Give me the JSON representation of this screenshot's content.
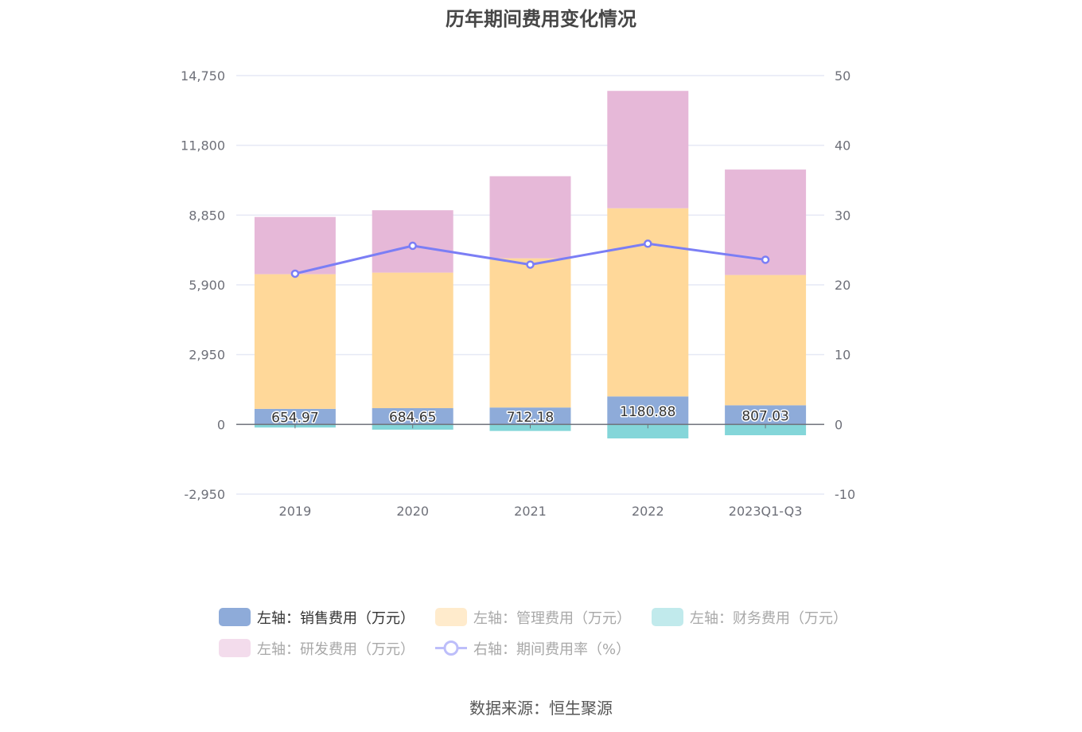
{
  "title": "历年期间费用变化情况",
  "source": "数据来源：恒生聚源",
  "colors": {
    "sales": "#8eabd9",
    "management": "#ffd899",
    "finance": "#84d6d9",
    "rd": "#e6b8d8",
    "rate": "#7b7ef5",
    "grid": "#e6e9f5",
    "axis": "#6e7079"
  },
  "legend": {
    "items": [
      {
        "label": "左轴：销售费用（万元）",
        "key": "sales",
        "type": "bar",
        "active": true,
        "swatch": "#8eabd9"
      },
      {
        "label": "左轴：管理费用（万元）",
        "key": "management",
        "type": "bar",
        "active": false,
        "swatch": "#ffebcc"
      },
      {
        "label": "左轴：财务费用（万元）",
        "key": "finance",
        "type": "bar",
        "active": false,
        "swatch": "#c1eaec"
      },
      {
        "label": "左轴：研发费用（万元）",
        "key": "rd",
        "type": "bar",
        "active": false,
        "swatch": "#f3dcec"
      },
      {
        "label": "右轴：期间费用率（%）",
        "key": "rate",
        "type": "line",
        "active": false,
        "swatch": "#bdbefa"
      }
    ]
  },
  "chart_data": {
    "type": "bar",
    "title": "历年期间费用变化情况",
    "categories": [
      "2019",
      "2020",
      "2021",
      "2022",
      "2023Q1-Q3"
    ],
    "stacked": true,
    "series": [
      {
        "name": "左轴：销售费用（万元）",
        "axis": "left",
        "type": "bar",
        "values": [
          654.97,
          684.65,
          712.18,
          1180.88,
          807.03
        ],
        "labels_shown": true
      },
      {
        "name": "左轴：管理费用（万元）",
        "axis": "left",
        "type": "bar",
        "values": [
          5696,
          5733,
          6311,
          7959,
          5510
        ]
      },
      {
        "name": "左轴：财务费用（万元）",
        "axis": "left",
        "type": "bar",
        "values": [
          -134,
          -225,
          -280,
          -595,
          -460
        ]
      },
      {
        "name": "左轴：研发费用（万元）",
        "axis": "left",
        "type": "bar",
        "values": [
          2419,
          2638,
          3471,
          4963,
          4459
        ]
      },
      {
        "name": "右轴：期间费用率（%）",
        "axis": "right",
        "type": "line",
        "values": [
          21.6,
          25.6,
          22.9,
          25.9,
          23.6
        ]
      }
    ],
    "left_axis": {
      "min": -2950,
      "max": 14750,
      "ticks": [
        -2950,
        0,
        2950,
        5900,
        8850,
        11800,
        14750
      ],
      "tick_labels": [
        "-2,950",
        "0",
        "2,950",
        "5,900",
        "8,850",
        "11,800",
        "14,750"
      ]
    },
    "right_axis": {
      "min": -10,
      "max": 50,
      "ticks": [
        -10,
        0,
        10,
        20,
        30,
        40,
        50
      ],
      "tick_labels": [
        "-10",
        "0",
        "10",
        "20",
        "30",
        "40",
        "50"
      ]
    },
    "grid": true,
    "legend_position": "bottom"
  }
}
